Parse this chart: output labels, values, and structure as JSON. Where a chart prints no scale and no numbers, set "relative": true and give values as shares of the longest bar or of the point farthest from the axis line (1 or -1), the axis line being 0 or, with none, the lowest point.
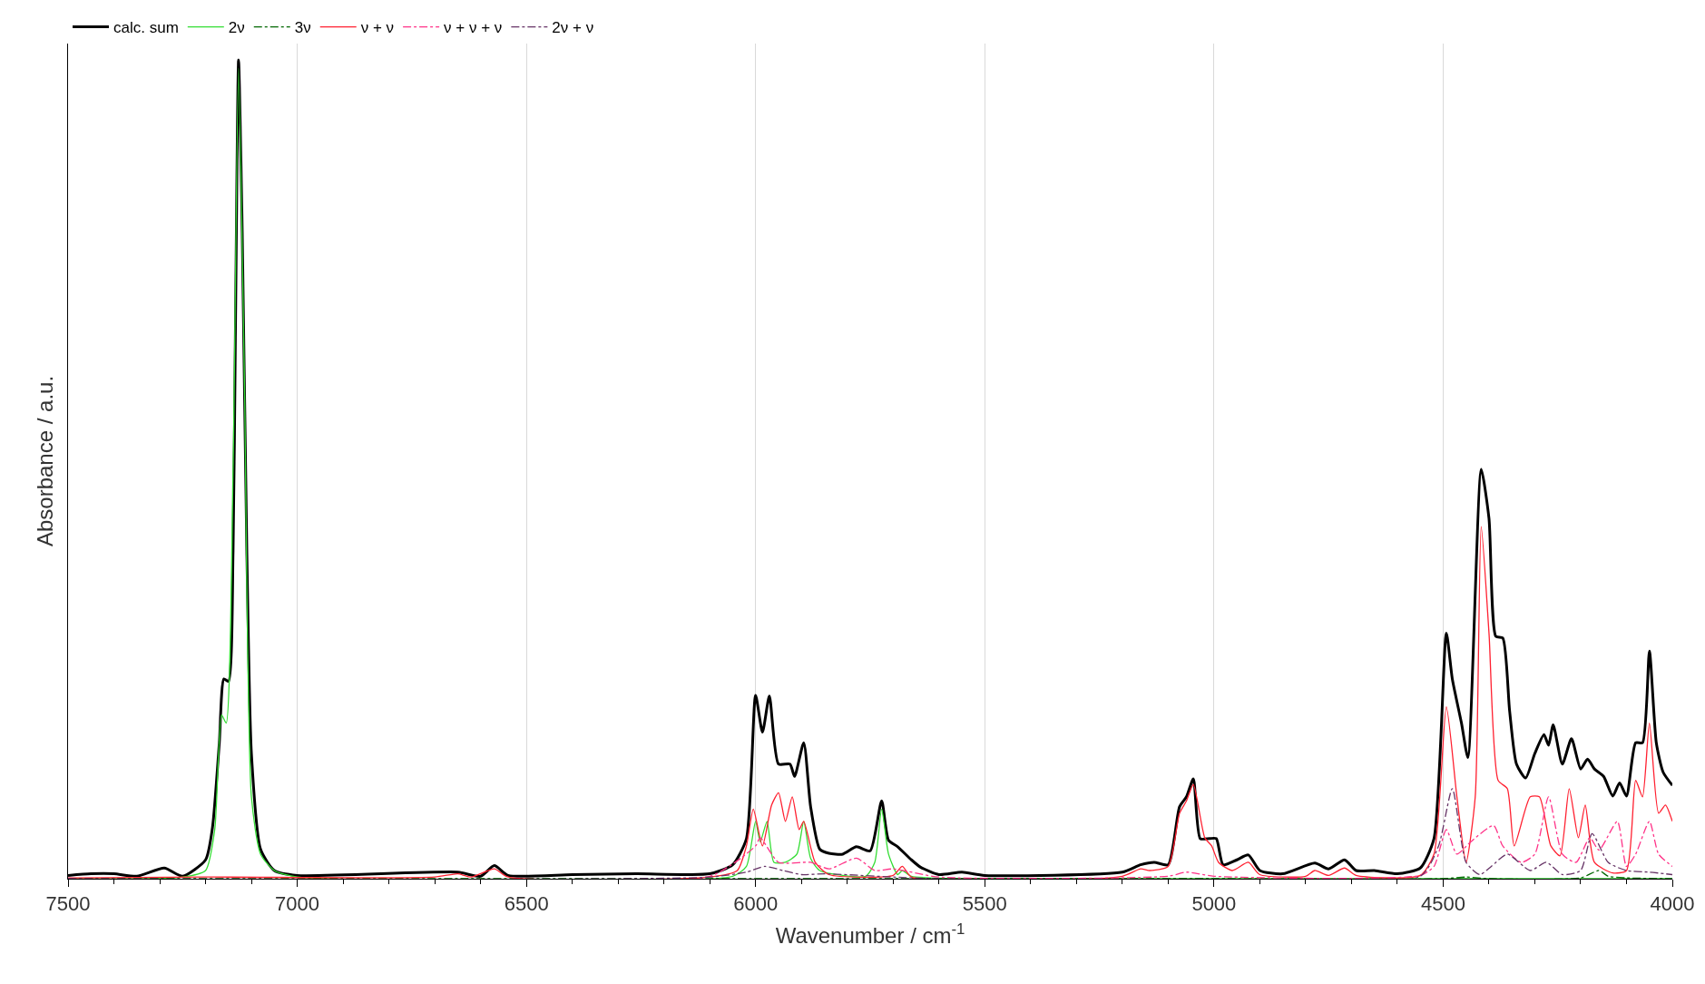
{
  "chart_data": {
    "type": "line",
    "relative": true,
    "xlabel": "Wavenumber / cm$^{-1}$",
    "ylabel": "Absorbance / a.u.",
    "xlim": [
      7500,
      4000
    ],
    "xticks": [
      7500,
      7000,
      6500,
      6000,
      5500,
      5000,
      4500,
      4000
    ],
    "grid": "x",
    "legend": "top left",
    "marker": "none",
    "series": [
      {
        "name": "calc. sum",
        "color": "#000000",
        "line_style": "solid",
        "x": [
          7500,
          7450,
          7400,
          7350,
          7290,
          7250,
          7200,
          7185,
          7170,
          7160,
          7150,
          7140,
          7135,
          7128,
          7120,
          7110,
          7100,
          7080,
          7050,
          7000,
          6650,
          6600,
          6570,
          6540,
          6400,
          6260,
          6100,
          6050,
          6020,
          6000,
          5985,
          5970,
          5950,
          5925,
          5915,
          5895,
          5880,
          5860,
          5840,
          5810,
          5780,
          5750,
          5725,
          5710,
          5690,
          5660,
          5640,
          5600,
          5550,
          5500,
          5200,
          5160,
          5130,
          5100,
          5075,
          5060,
          5045,
          5030,
          5010,
          4995,
          4980,
          4950,
          4925,
          4900,
          4850,
          4780,
          4750,
          4715,
          4690,
          4650,
          4600,
          4550,
          4520,
          4493,
          4480,
          4460,
          4446,
          4417,
          4400,
          4385,
          4370,
          4355,
          4340,
          4320,
          4300,
          4280,
          4270,
          4260,
          4240,
          4220,
          4200,
          4185,
          4170,
          4150,
          4130,
          4115,
          4100,
          4080,
          4065,
          4050,
          4035,
          4020,
          4000
        ],
        "values": [
          0.004,
          0.006,
          0.006,
          0.003,
          0.013,
          0.003,
          0.023,
          0.062,
          0.166,
          0.244,
          0.241,
          0.4,
          0.66,
          1.0,
          0.79,
          0.4,
          0.153,
          0.036,
          0.01,
          0.004,
          0.008,
          0.003,
          0.016,
          0.004,
          0.005,
          0.006,
          0.006,
          0.017,
          0.049,
          0.224,
          0.179,
          0.223,
          0.14,
          0.14,
          0.125,
          0.166,
          0.088,
          0.036,
          0.031,
          0.03,
          0.039,
          0.034,
          0.095,
          0.047,
          0.039,
          0.023,
          0.014,
          0.005,
          0.008,
          0.004,
          0.008,
          0.017,
          0.02,
          0.017,
          0.088,
          0.1,
          0.122,
          0.049,
          0.049,
          0.049,
          0.017,
          0.023,
          0.029,
          0.01,
          0.006,
          0.019,
          0.012,
          0.023,
          0.01,
          0.01,
          0.006,
          0.013,
          0.049,
          0.3,
          0.244,
          0.19,
          0.148,
          0.5,
          0.44,
          0.296,
          0.294,
          0.205,
          0.14,
          0.123,
          0.153,
          0.176,
          0.163,
          0.188,
          0.14,
          0.171,
          0.134,
          0.146,
          0.134,
          0.125,
          0.101,
          0.117,
          0.101,
          0.166,
          0.166,
          0.278,
          0.166,
          0.13,
          0.114
        ]
      },
      {
        "name": "2ν",
        "color": "#33dd33",
        "line_style": "solid",
        "x": [
          7500,
          7250,
          7200,
          7180,
          7165,
          7155,
          7140,
          7128,
          7115,
          7100,
          7080,
          7050,
          7000,
          6050,
          6020,
          6000,
          5990,
          5975,
          5960,
          5935,
          5910,
          5895,
          5880,
          5860,
          5760,
          5740,
          5725,
          5710,
          5690,
          5680,
          5660,
          5500,
          4000
        ],
        "values": [
          0.0,
          0.002,
          0.01,
          0.06,
          0.2,
          0.19,
          0.5,
          0.99,
          0.6,
          0.1,
          0.03,
          0.01,
          0.002,
          0.003,
          0.015,
          0.07,
          0.045,
          0.07,
          0.02,
          0.02,
          0.03,
          0.07,
          0.025,
          0.01,
          0.003,
          0.02,
          0.085,
          0.03,
          0.005,
          0.01,
          0.003,
          0.0,
          0.0
        ]
      },
      {
        "name": "3ν",
        "color": "#006600",
        "line_style": "dashdot",
        "x": [
          7500,
          6000,
          5000,
          4500,
          4450,
          4400,
          4200,
          4160,
          4140,
          4100,
          4000
        ],
        "values": [
          0.0,
          0.0,
          0.0,
          0.0,
          0.002,
          0.0,
          0.001,
          0.01,
          0.003,
          0.001,
          0.0
        ]
      },
      {
        "name": "ν + ν",
        "color": "#ff2030",
        "line_style": "solid",
        "x": [
          7500,
          7200,
          6700,
          6650,
          6620,
          6570,
          6540,
          6100,
          6040,
          6020,
          6005,
          5985,
          5965,
          5950,
          5935,
          5920,
          5905,
          5895,
          5870,
          5840,
          5700,
          5680,
          5660,
          5200,
          5160,
          5140,
          5100,
          5075,
          5060,
          5045,
          5020,
          5005,
          4990,
          4960,
          4925,
          4900,
          4800,
          4780,
          4750,
          4715,
          4690,
          4550,
          4520,
          4493,
          4470,
          4450,
          4430,
          4417,
          4400,
          4380,
          4360,
          4345,
          4310,
          4290,
          4265,
          4245,
          4225,
          4205,
          4190,
          4170,
          4130,
          4100,
          4080,
          4065,
          4050,
          4030,
          4015,
          4000
        ],
        "values": [
          0.001,
          0.002,
          0.002,
          0.006,
          0.002,
          0.012,
          0.002,
          0.002,
          0.01,
          0.04,
          0.085,
          0.04,
          0.09,
          0.105,
          0.07,
          0.1,
          0.06,
          0.07,
          0.02,
          0.005,
          0.004,
          0.015,
          0.002,
          0.003,
          0.012,
          0.01,
          0.015,
          0.08,
          0.095,
          0.115,
          0.05,
          0.04,
          0.02,
          0.01,
          0.02,
          0.005,
          0.003,
          0.01,
          0.004,
          0.013,
          0.004,
          0.004,
          0.03,
          0.21,
          0.1,
          0.02,
          0.1,
          0.43,
          0.3,
          0.12,
          0.11,
          0.04,
          0.1,
          0.1,
          0.04,
          0.028,
          0.11,
          0.05,
          0.09,
          0.02,
          0.007,
          0.01,
          0.12,
          0.1,
          0.19,
          0.08,
          0.09,
          0.07
        ]
      },
      {
        "name": "ν + ν + ν",
        "color": "#ff3388",
        "line_style": "dashdot",
        "x": [
          7500,
          6100,
          6000,
          5990,
          5950,
          5880,
          5840,
          5780,
          5740,
          5700,
          5600,
          5100,
          5060,
          5000,
          4550,
          4520,
          4493,
          4470,
          4440,
          4390,
          4370,
          4330,
          4300,
          4270,
          4240,
          4210,
          4180,
          4160,
          4120,
          4100,
          4080,
          4050,
          4030,
          4000
        ],
        "values": [
          0.0,
          0.003,
          0.04,
          0.05,
          0.02,
          0.02,
          0.012,
          0.025,
          0.01,
          0.012,
          0.002,
          0.003,
          0.008,
          0.003,
          0.004,
          0.015,
          0.06,
          0.03,
          0.045,
          0.065,
          0.04,
          0.02,
          0.03,
          0.1,
          0.03,
          0.02,
          0.05,
          0.035,
          0.07,
          0.015,
          0.03,
          0.07,
          0.03,
          0.015
        ]
      },
      {
        "name": "2ν + ν",
        "color": "#663366",
        "line_style": "dashdot",
        "x": [
          7500,
          6100,
          6020,
          5980,
          5940,
          5900,
          5850,
          5700,
          5600,
          4550,
          4510,
          4480,
          4450,
          4420,
          4395,
          4360,
          4310,
          4275,
          4240,
          4200,
          4175,
          4140,
          4100,
          4050,
          4000
        ],
        "values": [
          0.0,
          0.002,
          0.008,
          0.015,
          0.01,
          0.005,
          0.006,
          0.002,
          0.0,
          0.003,
          0.04,
          0.11,
          0.02,
          0.005,
          0.015,
          0.03,
          0.01,
          0.02,
          0.005,
          0.01,
          0.055,
          0.02,
          0.01,
          0.008,
          0.005
        ]
      }
    ]
  }
}
